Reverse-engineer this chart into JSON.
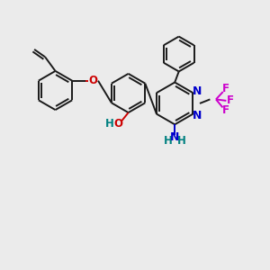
{
  "background_color": "#ebebeb",
  "bond_color": "#1a1a1a",
  "nitrogen_color": "#0000cc",
  "oxygen_color": "#cc0000",
  "fluorine_color": "#cc00cc",
  "teal_color": "#008080",
  "figsize": [
    3.0,
    3.0
  ],
  "dpi": 100,
  "xlim": [
    0,
    10
  ],
  "ylim": [
    0,
    10
  ]
}
